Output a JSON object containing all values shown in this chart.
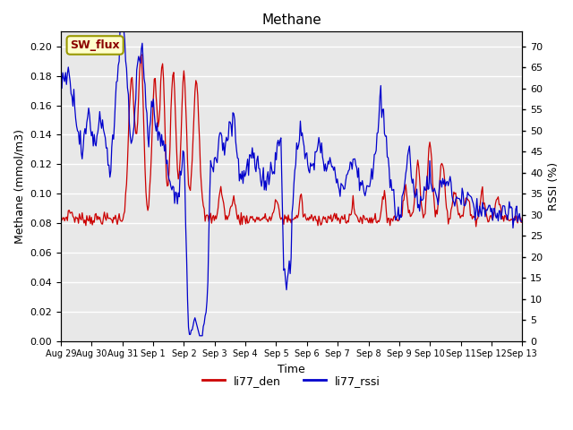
{
  "title": "Methane",
  "xlabel": "Time",
  "ylabel_left": "Methane (mmol/m3)",
  "ylabel_right": "RSSI (%)",
  "annotation_text": "SW_flux",
  "ylim_left": [
    0.0,
    0.21
  ],
  "ylim_right": [
    0,
    73.5
  ],
  "yticks_left": [
    0.0,
    0.02,
    0.04,
    0.06,
    0.08,
    0.1,
    0.12,
    0.14,
    0.16,
    0.18,
    0.2
  ],
  "yticks_right": [
    0,
    5,
    10,
    15,
    20,
    25,
    30,
    35,
    40,
    45,
    50,
    55,
    60,
    65,
    70
  ],
  "color_den": "#cc0000",
  "color_rssi": "#0000cc",
  "bg_color": "#e8e8e8",
  "legend_entries": [
    "li77_den",
    "li77_rssi"
  ],
  "xtick_labels": [
    "Aug 29",
    "Aug 30",
    "Aug 31",
    "Sep 1",
    "Sep 2",
    "Sep 3",
    "Sep 4",
    "Sep 5",
    "Sep 6",
    "Sep 7",
    "Sep 8",
    "Sep 9",
    "Sep 10",
    "Sep 11",
    "Sep 12",
    "Sep 13"
  ],
  "rssi_scale": 0.003,
  "n_points": 500
}
